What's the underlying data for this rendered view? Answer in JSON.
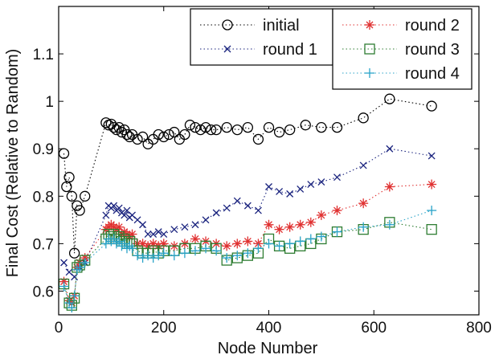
{
  "chart_data": {
    "type": "line",
    "title": "",
    "xlabel": "Node Number",
    "ylabel": "Final Cost (Relative to Random)",
    "xlim": [
      0,
      800
    ],
    "ylim": [
      0.55,
      1.2
    ],
    "xticks": [
      0,
      200,
      400,
      600,
      800
    ],
    "yticks": [
      0.6,
      0.7,
      0.8,
      0.9,
      1,
      1.1
    ],
    "grid": false,
    "legend_placement": "top",
    "series": [
      {
        "name": "initial",
        "color": "#000000",
        "marker": "circle",
        "x": [
          10,
          15,
          20,
          25,
          30,
          35,
          40,
          50,
          90,
          95,
          100,
          105,
          110,
          115,
          120,
          125,
          130,
          135,
          140,
          150,
          160,
          170,
          180,
          190,
          200,
          210,
          220,
          230,
          240,
          250,
          260,
          270,
          280,
          290,
          300,
          320,
          340,
          360,
          380,
          400,
          420,
          440,
          470,
          500,
          530,
          580,
          630,
          710
        ],
        "y": [
          0.89,
          0.82,
          0.84,
          0.8,
          0.68,
          0.78,
          0.77,
          0.8,
          0.955,
          0.95,
          0.952,
          0.945,
          0.94,
          0.945,
          0.935,
          0.94,
          0.93,
          0.925,
          0.93,
          0.92,
          0.925,
          0.91,
          0.92,
          0.93,
          0.925,
          0.93,
          0.935,
          0.92,
          0.93,
          0.95,
          0.945,
          0.94,
          0.945,
          0.94,
          0.94,
          0.945,
          0.94,
          0.945,
          0.92,
          0.945,
          0.935,
          0.94,
          0.95,
          0.945,
          0.945,
          0.965,
          1.005,
          0.99
        ]
      },
      {
        "name": "round 1",
        "color": "#1a237e",
        "marker": "x",
        "x": [
          10,
          20,
          30,
          40,
          50,
          90,
          95,
          100,
          105,
          110,
          115,
          120,
          125,
          130,
          135,
          140,
          150,
          160,
          170,
          180,
          190,
          200,
          220,
          240,
          260,
          280,
          300,
          320,
          340,
          360,
          380,
          400,
          420,
          440,
          460,
          480,
          500,
          530,
          580,
          630,
          710
        ],
        "y": [
          0.66,
          0.64,
          0.63,
          0.65,
          0.66,
          0.76,
          0.78,
          0.775,
          0.78,
          0.77,
          0.775,
          0.765,
          0.76,
          0.77,
          0.755,
          0.76,
          0.75,
          0.74,
          0.72,
          0.72,
          0.725,
          0.72,
          0.73,
          0.735,
          0.74,
          0.75,
          0.765,
          0.775,
          0.79,
          0.78,
          0.77,
          0.82,
          0.81,
          0.805,
          0.815,
          0.825,
          0.83,
          0.84,
          0.865,
          0.9,
          0.885
        ]
      },
      {
        "name": "round 2",
        "color": "#e03030",
        "marker": "star",
        "x": [
          10,
          20,
          25,
          30,
          35,
          40,
          50,
          90,
          95,
          100,
          105,
          110,
          115,
          120,
          125,
          130,
          135,
          140,
          150,
          160,
          170,
          180,
          190,
          200,
          220,
          240,
          260,
          280,
          300,
          320,
          340,
          360,
          380,
          400,
          420,
          440,
          460,
          480,
          500,
          530,
          580,
          630,
          710
        ],
        "y": [
          0.62,
          0.58,
          0.575,
          0.59,
          0.65,
          0.66,
          0.67,
          0.73,
          0.735,
          0.74,
          0.735,
          0.73,
          0.735,
          0.72,
          0.725,
          0.72,
          0.715,
          0.72,
          0.7,
          0.7,
          0.695,
          0.7,
          0.695,
          0.7,
          0.695,
          0.7,
          0.71,
          0.705,
          0.7,
          0.695,
          0.7,
          0.705,
          0.7,
          0.74,
          0.73,
          0.735,
          0.74,
          0.745,
          0.76,
          0.77,
          0.785,
          0.82,
          0.825
        ]
      },
      {
        "name": "round 3",
        "color": "#2e7d32",
        "marker": "square",
        "x": [
          10,
          20,
          25,
          30,
          35,
          40,
          50,
          90,
          95,
          100,
          105,
          110,
          115,
          120,
          125,
          130,
          135,
          140,
          150,
          160,
          170,
          180,
          190,
          200,
          220,
          240,
          260,
          280,
          300,
          320,
          340,
          360,
          380,
          400,
          420,
          440,
          460,
          480,
          500,
          530,
          580,
          630,
          710
        ],
        "y": [
          0.615,
          0.575,
          0.57,
          0.585,
          0.65,
          0.655,
          0.665,
          0.71,
          0.72,
          0.715,
          0.72,
          0.71,
          0.715,
          0.705,
          0.71,
          0.7,
          0.705,
          0.7,
          0.685,
          0.68,
          0.68,
          0.685,
          0.68,
          0.685,
          0.685,
          0.69,
          0.69,
          0.695,
          0.69,
          0.665,
          0.67,
          0.675,
          0.68,
          0.71,
          0.695,
          0.69,
          0.695,
          0.7,
          0.71,
          0.725,
          0.73,
          0.745,
          0.73
        ]
      },
      {
        "name": "round 4",
        "color": "#29a3c8",
        "marker": "plus",
        "x": [
          10,
          20,
          25,
          30,
          35,
          40,
          50,
          90,
          95,
          100,
          105,
          110,
          115,
          120,
          125,
          130,
          135,
          140,
          150,
          160,
          170,
          180,
          190,
          200,
          220,
          240,
          260,
          280,
          300,
          320,
          340,
          360,
          380,
          400,
          420,
          440,
          460,
          480,
          500,
          530,
          580,
          630,
          710
        ],
        "y": [
          0.61,
          0.575,
          0.565,
          0.59,
          0.645,
          0.65,
          0.66,
          0.7,
          0.71,
          0.705,
          0.71,
          0.7,
          0.705,
          0.695,
          0.7,
          0.69,
          0.695,
          0.69,
          0.675,
          0.67,
          0.675,
          0.67,
          0.675,
          0.68,
          0.675,
          0.68,
          0.685,
          0.69,
          0.685,
          0.67,
          0.675,
          0.68,
          0.69,
          0.7,
          0.695,
          0.7,
          0.705,
          0.71,
          0.715,
          0.725,
          0.735,
          0.74,
          0.77
        ]
      }
    ]
  }
}
